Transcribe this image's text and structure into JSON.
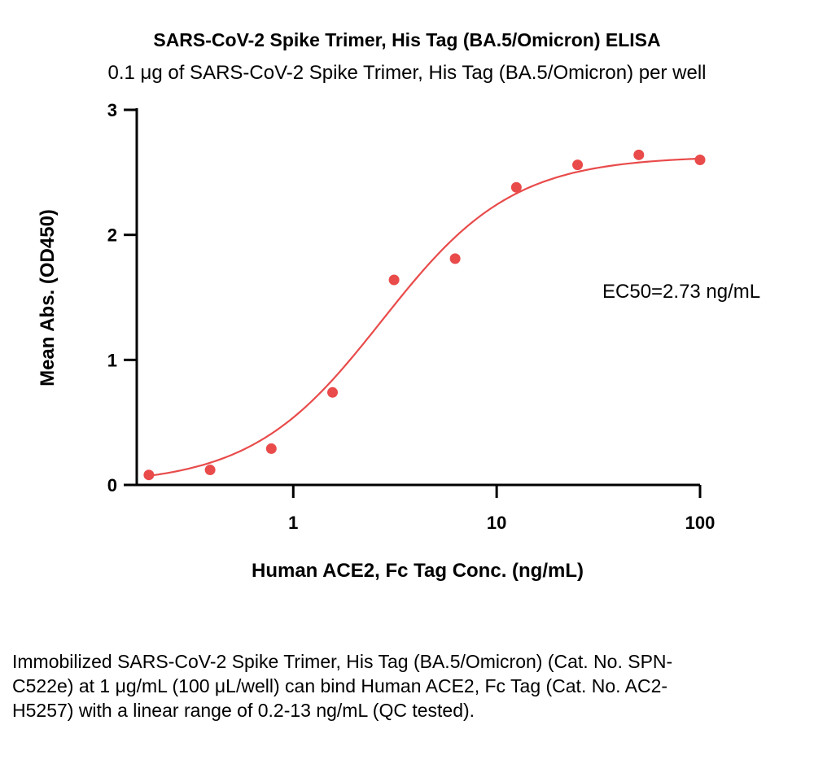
{
  "chart_data": {
    "type": "scatter",
    "title": "SARS-CoV-2 Spike Trimer, His Tag (BA.5/Omicron) ELISA",
    "subtitle": "0.1 μg of SARS-CoV-2 Spike Trimer, His Tag (BA.5/Omicron) per well",
    "xlabel": "Human ACE2, Fc Tag Conc. (ng/mL)",
    "ylabel": "Mean Abs. (OD450)",
    "x_scale": "log",
    "xlim": [
      0.17,
      100
    ],
    "ylim": [
      0,
      3
    ],
    "x_ticks": [
      1,
      10,
      100
    ],
    "x_tick_labels": [
      "1",
      "10",
      "100"
    ],
    "y_ticks": [
      0,
      1,
      2,
      3
    ],
    "y_tick_labels": [
      "0",
      "1",
      "2",
      "3"
    ],
    "grid": false,
    "series": [
      {
        "points": [
          {
            "x": 0.195,
            "y": 0.08
          },
          {
            "x": 0.39,
            "y": 0.12
          },
          {
            "x": 0.78,
            "y": 0.29
          },
          {
            "x": 1.56,
            "y": 0.74
          },
          {
            "x": 3.13,
            "y": 1.64
          },
          {
            "x": 6.25,
            "y": 1.81
          },
          {
            "x": 12.5,
            "y": 2.38
          },
          {
            "x": 25,
            "y": 2.56
          },
          {
            "x": 50,
            "y": 2.64
          },
          {
            "x": 100,
            "y": 2.6
          }
        ],
        "fit": {
          "model": "4PL",
          "bottom": 0.0,
          "top": 2.63,
          "ec50": 2.73,
          "hill": 1.35
        },
        "color": "#e94b4b"
      }
    ],
    "annotations": [
      "EC50=2.73 ng/mL"
    ]
  },
  "caption": "Immobilized SARS-CoV-2 Spike Trimer, His Tag (BA.5/Omicron) (Cat. No. SPN-C522e) at 1 μg/mL (100 μL/well) can bind Human ACE2, Fc Tag (Cat. No. AC2-H5257) with a linear range of 0.2-13 ng/mL (QC tested)."
}
